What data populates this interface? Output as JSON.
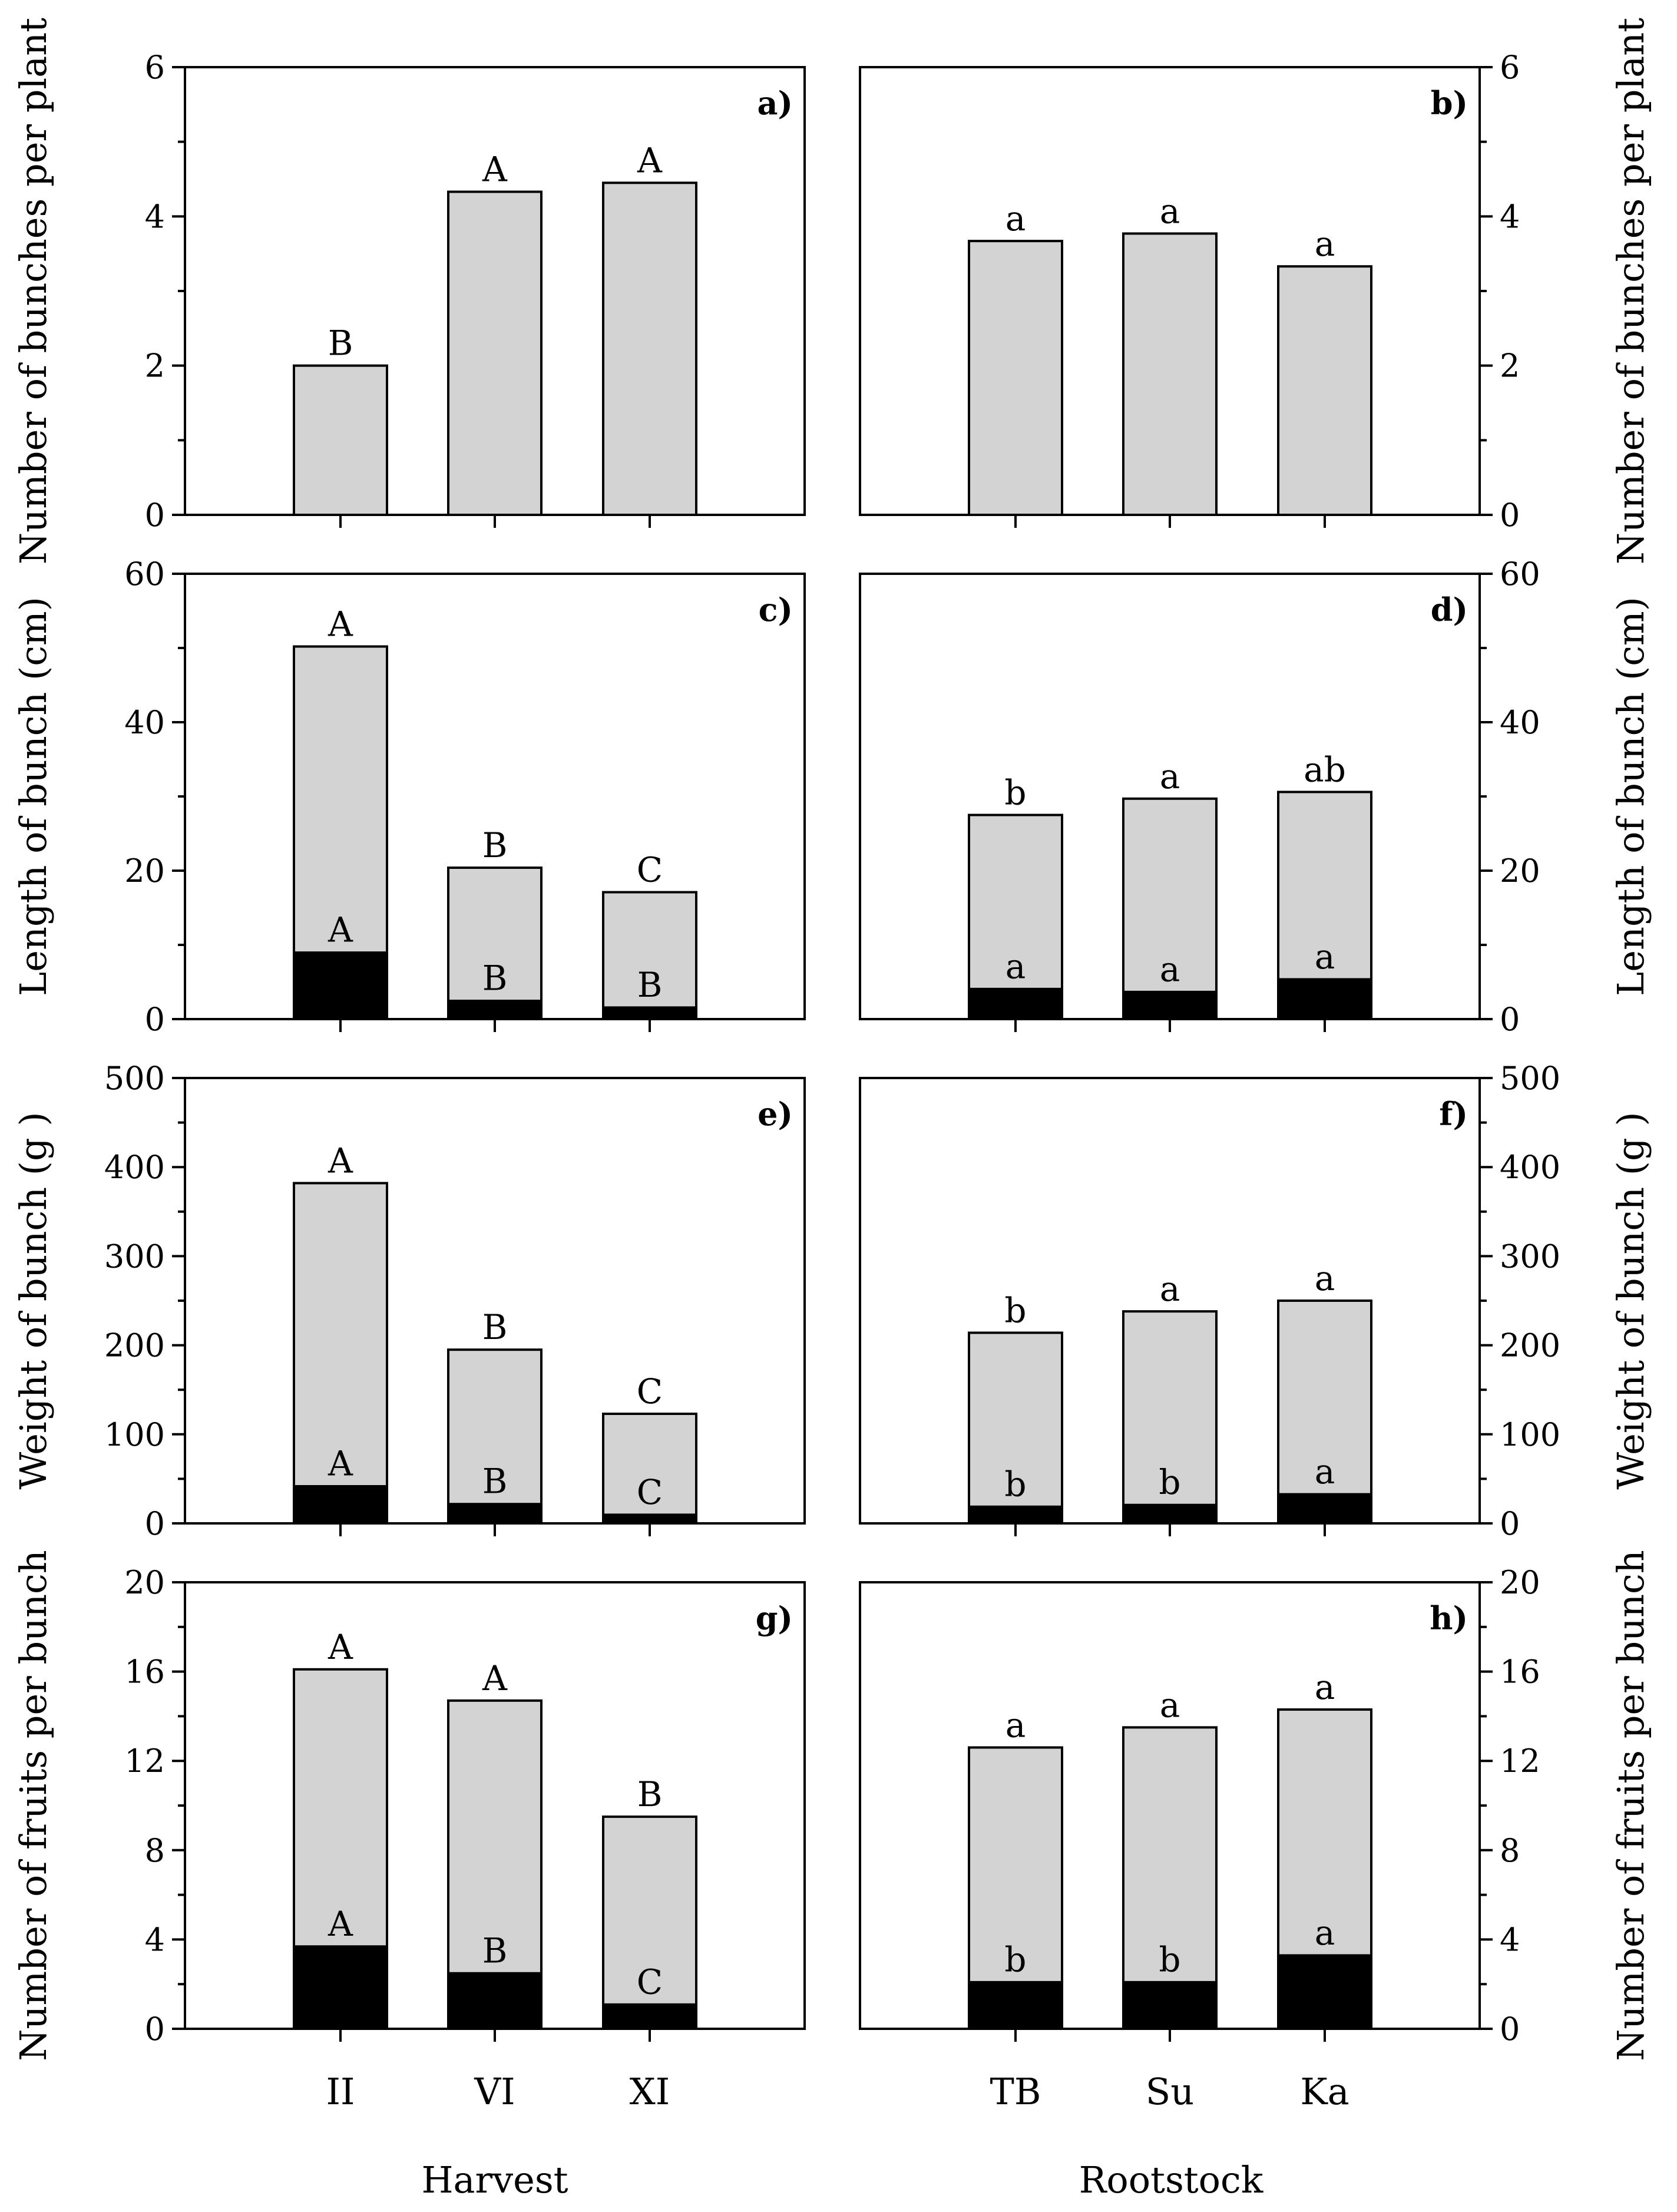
{
  "figure": {
    "x_axis_titles": {
      "left": "Harvest",
      "right": "Rootstock"
    },
    "bar_colors": {
      "total": "#d3d3d3",
      "component": "#000000"
    }
  },
  "chart_data": [
    {
      "id": "a",
      "panel_label": "a)",
      "type": "bar",
      "column": "left",
      "row": 0,
      "ylabel": "Number of bunches per plant",
      "ylim": [
        0,
        6
      ],
      "yticks": [
        0,
        2,
        4,
        6
      ],
      "minor_step": 1,
      "categories": [
        "II",
        "VI",
        "XI"
      ],
      "series": [
        {
          "name": "total",
          "values": [
            2.0,
            4.33,
            4.45
          ],
          "letters": [
            "B",
            "A",
            "A"
          ]
        }
      ]
    },
    {
      "id": "b",
      "panel_label": "b)",
      "type": "bar",
      "column": "right",
      "row": 0,
      "ylabel": "Number of bunches per plant",
      "ylim": [
        0,
        6
      ],
      "yticks": [
        0,
        2,
        4,
        6
      ],
      "minor_step": 1,
      "categories": [
        "TB",
        "Su",
        "Ka"
      ],
      "series": [
        {
          "name": "total",
          "values": [
            3.67,
            3.77,
            3.33
          ],
          "letters": [
            "a",
            "a",
            "a"
          ]
        }
      ]
    },
    {
      "id": "c",
      "panel_label": "c)",
      "type": "bar",
      "column": "left",
      "row": 1,
      "ylabel": "Length of bunch (cm)",
      "ylim": [
        0,
        60
      ],
      "yticks": [
        0,
        20,
        40,
        60
      ],
      "minor_step": 10,
      "categories": [
        "II",
        "VI",
        "XI"
      ],
      "series": [
        {
          "name": "total",
          "values": [
            50.2,
            20.4,
            17.1
          ],
          "letters": [
            "A",
            "B",
            "C"
          ]
        },
        {
          "name": "component",
          "values": [
            9.0,
            2.5,
            1.6
          ],
          "letters": [
            "A",
            "B",
            "B"
          ]
        }
      ]
    },
    {
      "id": "d",
      "panel_label": "d)",
      "type": "bar",
      "column": "right",
      "row": 1,
      "ylabel": "Length of bunch (cm)",
      "ylim": [
        0,
        60
      ],
      "yticks": [
        0,
        20,
        40,
        60
      ],
      "minor_step": 10,
      "categories": [
        "TB",
        "Su",
        "Ka"
      ],
      "series": [
        {
          "name": "total",
          "values": [
            27.5,
            29.7,
            30.6
          ],
          "letters": [
            "b",
            "a",
            "ab"
          ]
        },
        {
          "name": "component",
          "values": [
            4.1,
            3.7,
            5.4
          ],
          "letters": [
            "a",
            "a",
            "a"
          ]
        }
      ]
    },
    {
      "id": "e",
      "panel_label": "e)",
      "type": "bar",
      "column": "left",
      "row": 2,
      "ylabel": "Weight of bunch (g )",
      "ylim": [
        0,
        500
      ],
      "yticks": [
        0,
        100,
        200,
        300,
        400,
        500
      ],
      "minor_step": 50,
      "categories": [
        "II",
        "VI",
        "XI"
      ],
      "series": [
        {
          "name": "total",
          "values": [
            382,
            195,
            123
          ],
          "letters": [
            "A",
            "B",
            "C"
          ]
        },
        {
          "name": "component",
          "values": [
            42,
            22,
            10
          ],
          "letters": [
            "A",
            "B",
            "C"
          ]
        }
      ]
    },
    {
      "id": "f",
      "panel_label": "f)",
      "type": "bar",
      "column": "right",
      "row": 2,
      "ylabel": "Weight of bunch (g )",
      "ylim": [
        0,
        500
      ],
      "yticks": [
        0,
        100,
        200,
        300,
        400,
        500
      ],
      "minor_step": 50,
      "categories": [
        "TB",
        "Su",
        "Ka"
      ],
      "series": [
        {
          "name": "total",
          "values": [
            214,
            238,
            250
          ],
          "letters": [
            "b",
            "a",
            "a"
          ]
        },
        {
          "name": "component",
          "values": [
            19,
            21,
            33
          ],
          "letters": [
            "b",
            "b",
            "a"
          ]
        }
      ]
    },
    {
      "id": "g",
      "panel_label": "g)",
      "type": "bar",
      "column": "left",
      "row": 3,
      "ylabel": "Number of fruits per bunch",
      "ylim": [
        0,
        20
      ],
      "yticks": [
        0,
        4,
        8,
        12,
        16,
        20
      ],
      "minor_step": 2,
      "categories": [
        "II",
        "VI",
        "XI"
      ],
      "series": [
        {
          "name": "total",
          "values": [
            16.1,
            14.7,
            9.5
          ],
          "letters": [
            "A",
            "A",
            "B"
          ]
        },
        {
          "name": "component",
          "values": [
            3.7,
            2.5,
            1.1
          ],
          "letters": [
            "A",
            "B",
            "C"
          ]
        }
      ]
    },
    {
      "id": "h",
      "panel_label": "h)",
      "type": "bar",
      "column": "right",
      "row": 3,
      "ylabel": "Number of fruits per bunch",
      "ylim": [
        0,
        20
      ],
      "yticks": [
        0,
        4,
        8,
        12,
        16,
        20
      ],
      "minor_step": 2,
      "categories": [
        "TB",
        "Su",
        "Ka"
      ],
      "series": [
        {
          "name": "total",
          "values": [
            12.6,
            13.5,
            14.3
          ],
          "letters": [
            "a",
            "a",
            "a"
          ]
        },
        {
          "name": "component",
          "values": [
            2.1,
            2.1,
            3.3
          ],
          "letters": [
            "b",
            "b",
            "a"
          ]
        }
      ]
    }
  ]
}
